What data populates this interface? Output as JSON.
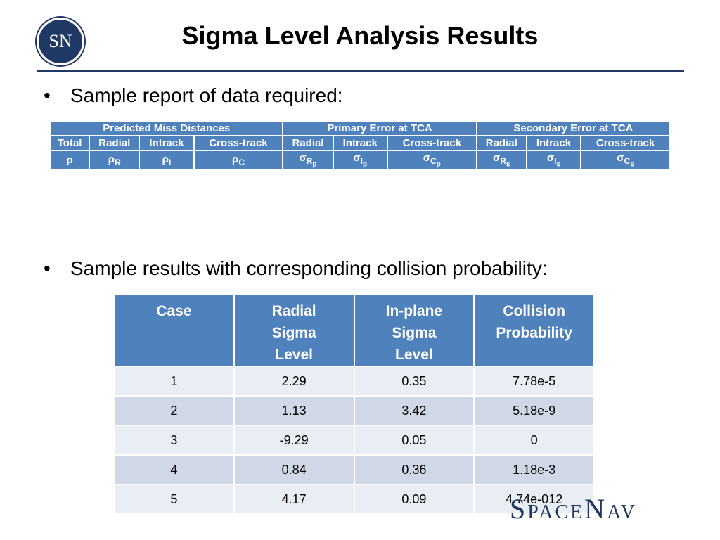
{
  "header": {
    "logo": "SN",
    "title": "Sigma Level Analysis Results"
  },
  "bullets": [
    "Sample report of data required:",
    "Sample results with corresponding collision probability:"
  ],
  "table1": {
    "groups": [
      {
        "label": "Predicted Miss Distances",
        "columns": [
          {
            "label": "Total",
            "symbol": {
              "base": "ρ"
            }
          },
          {
            "label": "Radial",
            "symbol": {
              "base": "ρ",
              "sub": "R"
            }
          },
          {
            "label": "Intrack",
            "symbol": {
              "base": "ρ",
              "sub": "I"
            }
          },
          {
            "label": "Cross-track",
            "symbol": {
              "base": "ρ",
              "sub": "C"
            }
          }
        ]
      },
      {
        "label": "Primary Error at TCA",
        "columns": [
          {
            "label": "Radial",
            "symbol": {
              "base": "σ",
              "sub": "R",
              "subsub": "p"
            }
          },
          {
            "label": "Intrack",
            "symbol": {
              "base": "σ",
              "sub": "I",
              "subsub": "p"
            }
          },
          {
            "label": "Cross-track",
            "symbol": {
              "base": "σ",
              "sub": "C",
              "subsub": "p"
            }
          }
        ]
      },
      {
        "label": "Secondary Error at TCA",
        "columns": [
          {
            "label": "Radial",
            "symbol": {
              "base": "σ",
              "sub": "R",
              "subsub": "s"
            }
          },
          {
            "label": "Intrack",
            "symbol": {
              "base": "σ",
              "sub": "I",
              "subsub": "s"
            }
          },
          {
            "label": "Cross-track",
            "symbol": {
              "base": "σ",
              "sub": "C",
              "subsub": "s"
            }
          }
        ]
      }
    ]
  },
  "table2": {
    "columns": [
      "Case",
      "Radial Sigma Level",
      "In-plane Sigma Level",
      "Collision Probability"
    ],
    "rows": [
      [
        "1",
        "2.29",
        "0.35",
        "7.78e-5"
      ],
      [
        "2",
        "1.13",
        "3.42",
        "5.18e-9"
      ],
      [
        "3",
        "-9.29",
        "0.05",
        "0"
      ],
      [
        "4",
        "0.84",
        "0.36",
        "1.18e-3"
      ],
      [
        "5",
        "4.17",
        "0.09",
        "4.74e-012"
      ]
    ]
  },
  "footer": {
    "brand": [
      "Space",
      "Nav"
    ]
  }
}
